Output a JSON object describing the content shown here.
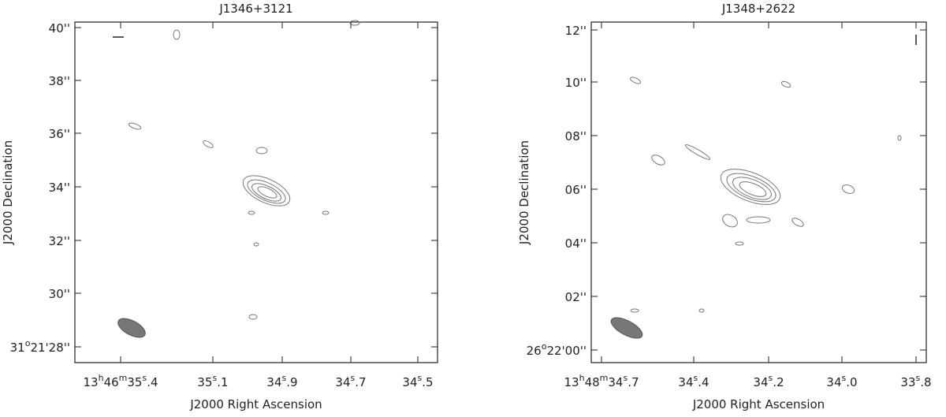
{
  "panels": [
    {
      "title": "J1346+3121",
      "xlabel": "J2000 Right Ascension",
      "ylabel": "J2000 Declination",
      "yticks": [
        [
          "40''"
        ],
        [
          "38''"
        ],
        [
          "36''"
        ],
        [
          "34''"
        ],
        [
          "32''"
        ],
        [
          "30''"
        ],
        [
          "31",
          "o",
          "21'28''"
        ]
      ],
      "xticks": [
        [
          "13",
          "h",
          "46",
          "m",
          "35",
          "s",
          ".4"
        ],
        [
          "35",
          "s",
          ".1"
        ],
        [
          "34",
          "s",
          ".9"
        ],
        [
          "34",
          "s",
          ".7"
        ],
        [
          "34",
          "s",
          ".5"
        ]
      ]
    },
    {
      "title": "J1348+2622",
      "xlabel": "J2000 Right Ascension",
      "ylabel": "J2000 Declination",
      "yticks": [
        [
          "12''"
        ],
        [
          "10''"
        ],
        [
          "08''"
        ],
        [
          "06''"
        ],
        [
          "04''"
        ],
        [
          "02''"
        ],
        [
          "26",
          "o",
          "22'00''"
        ]
      ],
      "xticks": [
        [
          "13",
          "h",
          "48",
          "m",
          "34",
          "s",
          ".7"
        ],
        [
          "34",
          "s",
          ".4"
        ],
        [
          "34",
          "s",
          ".2"
        ],
        [
          "34",
          "s",
          ".0"
        ],
        [
          "33",
          "s",
          ".8"
        ]
      ]
    }
  ]
}
